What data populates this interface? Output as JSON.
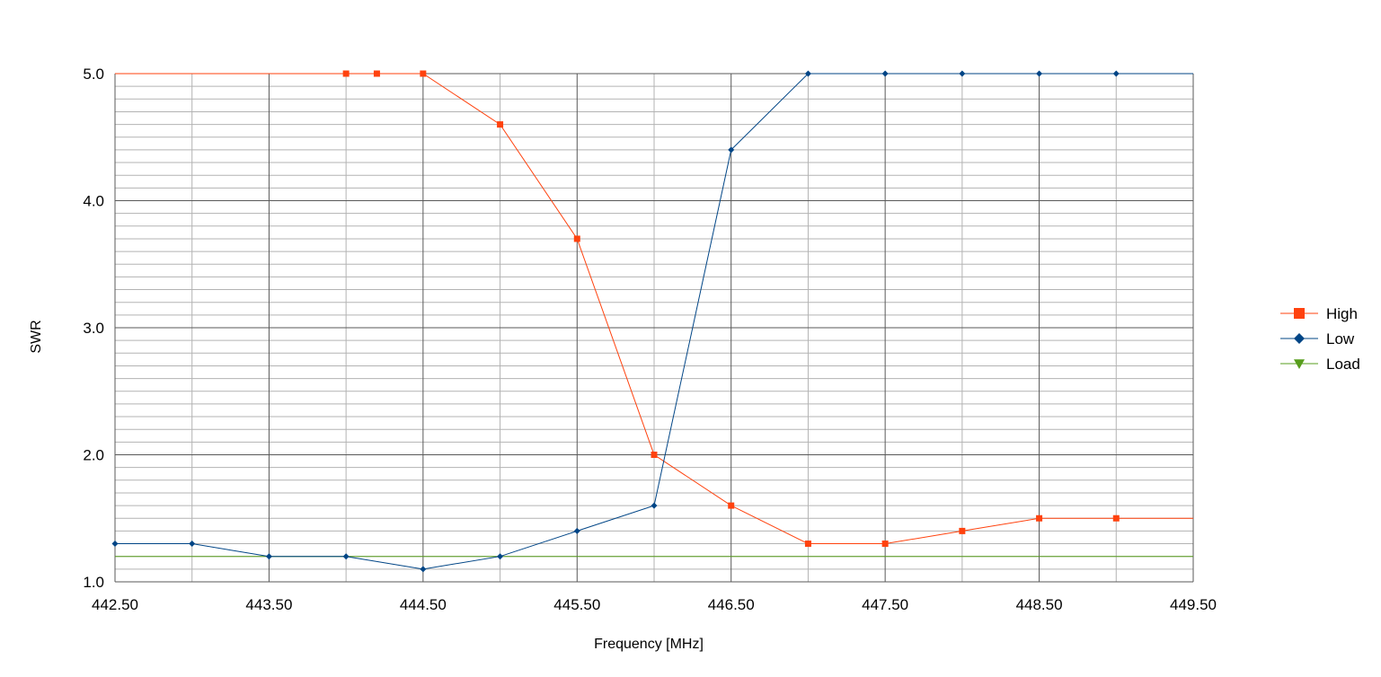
{
  "chart_data": {
    "type": "line",
    "xlabel": "Frequency [MHz]",
    "ylabel": "SWR",
    "xlim": [
      442.5,
      449.5
    ],
    "ylim": [
      1.0,
      5.0
    ],
    "x_ticks": [
      "442.50",
      "443.50",
      "444.50",
      "445.50",
      "446.50",
      "447.50",
      "448.50",
      "449.50"
    ],
    "y_ticks": [
      "1.0",
      "2.0",
      "3.0",
      "4.0",
      "5.0"
    ],
    "grid": true,
    "legend_position": "right",
    "series": [
      {
        "name": "High",
        "color": "#ff420e",
        "marker": "square",
        "x": [
          442.5,
          444.0,
          444.2,
          444.5,
          445.0,
          445.5,
          446.0,
          446.5,
          447.0,
          447.5,
          448.0,
          448.5,
          449.0,
          449.5
        ],
        "y": [
          5.0,
          5.0,
          5.0,
          5.0,
          4.6,
          3.7,
          2.0,
          1.6,
          1.3,
          1.3,
          1.4,
          1.5,
          1.5,
          1.5
        ],
        "marked": [
          false,
          true,
          true,
          true,
          true,
          true,
          true,
          true,
          true,
          true,
          true,
          true,
          true,
          false
        ]
      },
      {
        "name": "Low",
        "color": "#004586",
        "marker": "diamond",
        "x": [
          442.5,
          443.0,
          443.5,
          444.0,
          444.5,
          445.0,
          445.5,
          446.0,
          446.5,
          447.0,
          447.5,
          448.0,
          448.5,
          449.0,
          449.5
        ],
        "y": [
          1.3,
          1.3,
          1.2,
          1.2,
          1.1,
          1.2,
          1.4,
          1.6,
          4.4,
          5.0,
          5.0,
          5.0,
          5.0,
          5.0,
          5.0
        ],
        "marked": [
          true,
          true,
          true,
          true,
          true,
          true,
          true,
          true,
          true,
          true,
          true,
          true,
          true,
          true,
          false
        ]
      },
      {
        "name": "Load",
        "color": "#579d1c",
        "marker": "triangle-down",
        "x": [
          442.5,
          449.5
        ],
        "y": [
          1.2,
          1.2
        ],
        "marked": [
          false,
          false
        ]
      }
    ]
  }
}
